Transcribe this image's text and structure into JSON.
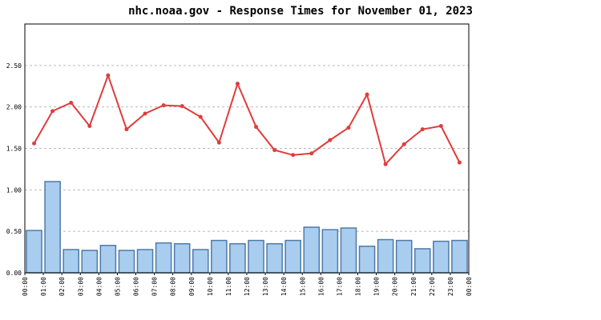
{
  "chart_data": {
    "type": "bar_line",
    "title": "nhc.noaa.gov - Response Times for November 01, 2023",
    "xtick_labels": [
      "00:00",
      "01:00",
      "02:00",
      "03:00",
      "04:00",
      "05:00",
      "06:00",
      "07:00",
      "08:00",
      "09:00",
      "10:00",
      "11:00",
      "12:00",
      "13:00",
      "14:00",
      "15:00",
      "16:00",
      "17:00",
      "18:00",
      "19:00",
      "20:00",
      "21:00",
      "22:00",
      "23:00",
      "00:00"
    ],
    "series": [
      {
        "type": "bar",
        "color": "#a8cdef",
        "values": [
          0.51,
          1.1,
          0.28,
          0.27,
          0.33,
          0.27,
          0.28,
          0.36,
          0.35,
          0.28,
          0.39,
          0.35,
          0.39,
          0.35,
          0.39,
          0.55,
          0.52,
          0.54,
          0.32,
          0.4,
          0.39,
          0.29,
          0.38,
          0.39
        ]
      },
      {
        "type": "line",
        "color": "#e03c3c",
        "values": [
          1.56,
          1.95,
          2.05,
          1.77,
          2.38,
          1.73,
          1.92,
          2.02,
          2.01,
          1.88,
          1.57,
          2.28,
          1.76,
          1.48,
          1.42,
          1.44,
          1.6,
          1.75,
          2.15,
          1.31,
          1.55,
          1.73,
          1.77,
          1.33
        ]
      }
    ],
    "ylim": [
      0,
      3
    ],
    "yticks": [
      {
        "value": 0,
        "label": "0.00"
      },
      {
        "value": 0.5,
        "label": "0.50"
      },
      {
        "value": 1,
        "label": "1.00"
      },
      {
        "value": 1.5,
        "label": "1.50"
      },
      {
        "value": 2,
        "label": "2.00"
      },
      {
        "value": 2.5,
        "label": "2.50"
      }
    ],
    "grid": true
  }
}
